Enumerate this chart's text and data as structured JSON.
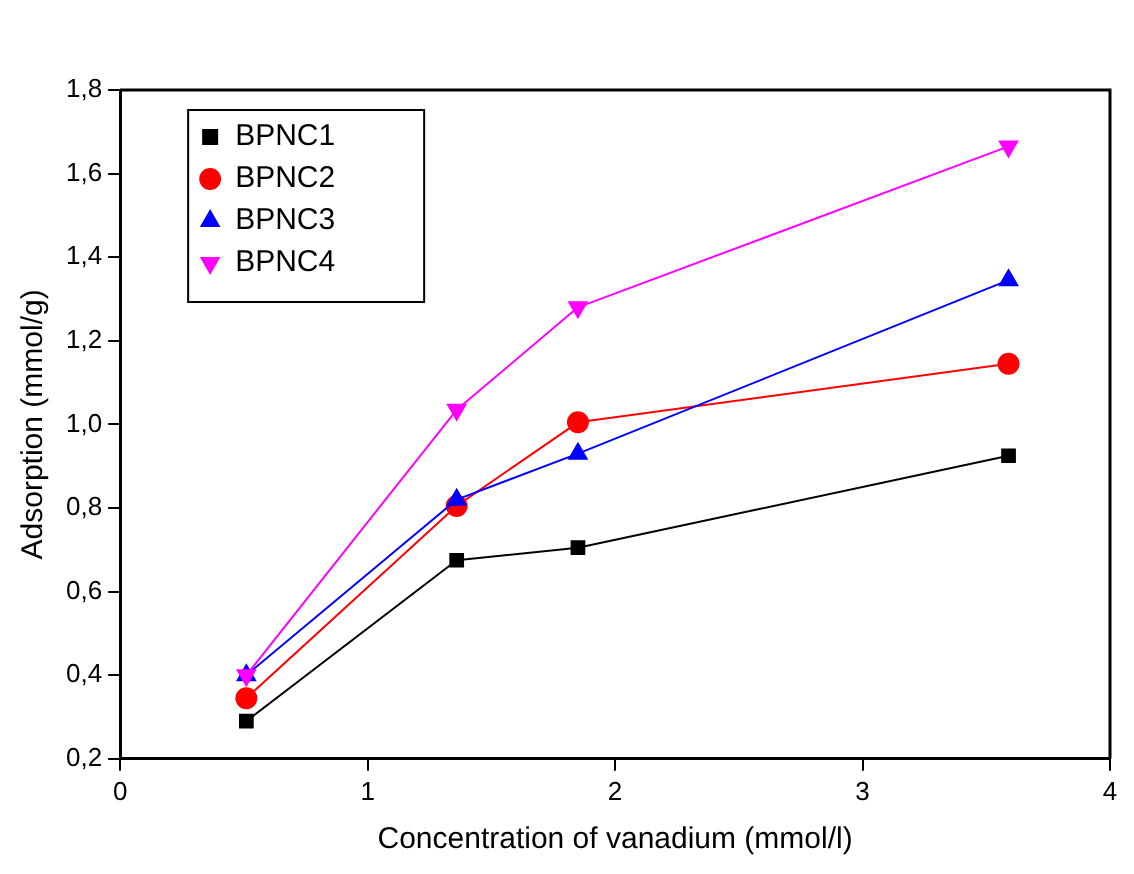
{
  "chart_data": {
    "type": "line",
    "xlabel": "Concentration of vanadium (mmol/l)",
    "ylabel": "Adsorption (mmol/g)",
    "x": [
      0.51,
      1.36,
      1.85,
      3.59
    ],
    "xlim": [
      0,
      4
    ],
    "xticks": [
      0,
      1,
      2,
      3,
      4
    ],
    "ylim": [
      0.2,
      1.8
    ],
    "yticks": [
      {
        "value": 0.2,
        "label": "0,2"
      },
      {
        "value": 0.4,
        "label": "0,4"
      },
      {
        "value": 0.6,
        "label": "0,6"
      },
      {
        "value": 0.8,
        "label": "0,8"
      },
      {
        "value": 1.0,
        "label": "1,0"
      },
      {
        "value": 1.2,
        "label": "1,2"
      },
      {
        "value": 1.4,
        "label": "1,4"
      },
      {
        "value": 1.6,
        "label": "1,6"
      },
      {
        "value": 1.8,
        "label": "1,8"
      }
    ],
    "grid": false,
    "legend": "top left",
    "line_style": "solid",
    "series": [
      {
        "name": "BPNC1",
        "color": "#000000",
        "marker": "square",
        "values": [
          0.29,
          0.675,
          0.705,
          0.925
        ]
      },
      {
        "name": "BPNC2",
        "color": "#ff0000",
        "marker": "circle",
        "values": [
          0.345,
          0.805,
          1.005,
          1.145
        ]
      },
      {
        "name": "BPNC3",
        "color": "#0000ff",
        "marker": "triangle",
        "values": [
          0.4,
          0.82,
          0.93,
          1.345
        ]
      },
      {
        "name": "BPNC4",
        "color": "#ff00ff",
        "marker": "triangle-down",
        "values": [
          0.4,
          1.035,
          1.28,
          1.665
        ]
      }
    ]
  }
}
